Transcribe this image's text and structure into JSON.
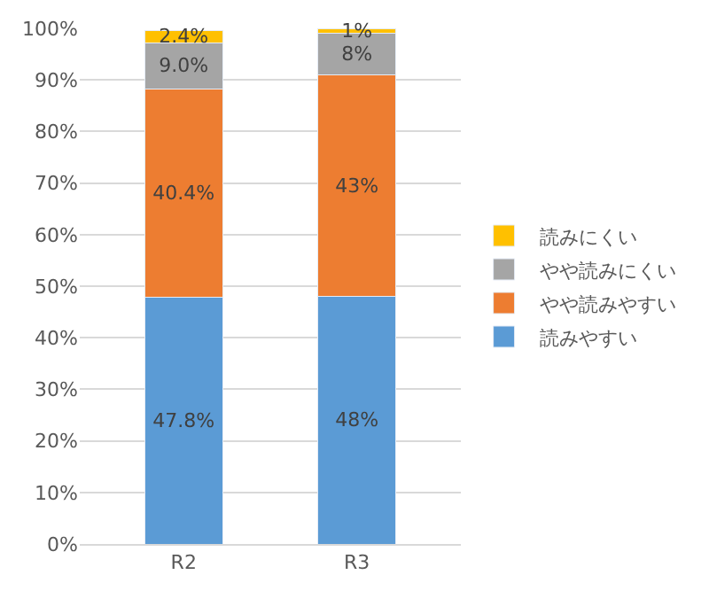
{
  "chart_data": {
    "type": "bar",
    "stacked": true,
    "categories": [
      "R2",
      "R3"
    ],
    "series": [
      {
        "name": "読みやすい",
        "color": "#5b9bd5",
        "values": [
          47.8,
          48
        ],
        "value_labels": [
          "47.8%",
          "48%"
        ]
      },
      {
        "name": "やや読みやすい",
        "color": "#ed7d31",
        "values": [
          40.4,
          43
        ],
        "value_labels": [
          "40.4%",
          "43%"
        ]
      },
      {
        "name": "やや読みにくい",
        "color": "#a5a5a5",
        "values": [
          9.0,
          8
        ],
        "value_labels": [
          "9.0%",
          "8%"
        ]
      },
      {
        "name": "読みにくい",
        "color": "#ffc000",
        "values": [
          2.4,
          1
        ],
        "value_labels": [
          "2.4%",
          "1%"
        ]
      }
    ],
    "ylim": [
      0,
      100
    ],
    "yticks": [
      {
        "value": 0,
        "label": "0%"
      },
      {
        "value": 10,
        "label": "10%"
      },
      {
        "value": 20,
        "label": "20%"
      },
      {
        "value": 30,
        "label": "30%"
      },
      {
        "value": 40,
        "label": "40%"
      },
      {
        "value": 50,
        "label": "50%"
      },
      {
        "value": 60,
        "label": "60%"
      },
      {
        "value": 70,
        "label": "70%"
      },
      {
        "value": 80,
        "label": "80%"
      },
      {
        "value": 90,
        "label": "90%"
      },
      {
        "value": 100,
        "label": "100%"
      }
    ],
    "grid": "y",
    "legend": "right"
  }
}
